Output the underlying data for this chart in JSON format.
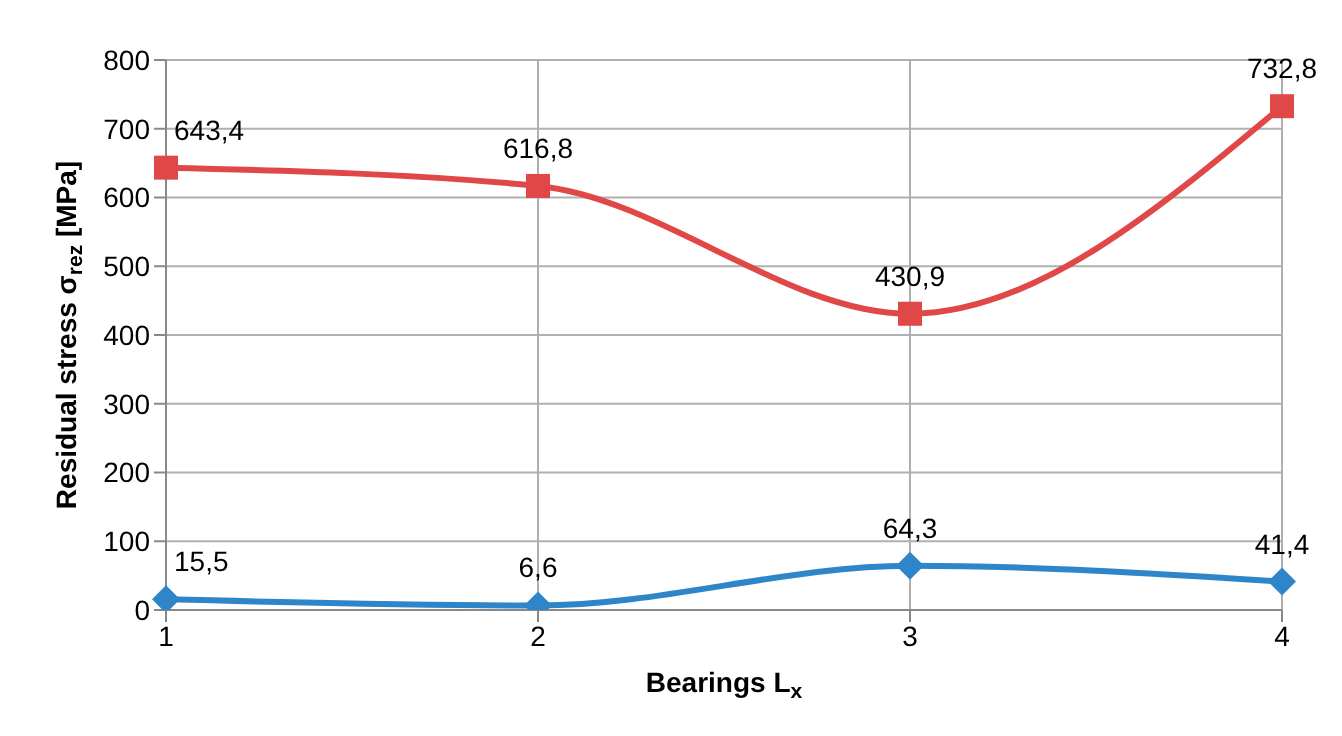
{
  "chart_data": {
    "type": "line",
    "xlabel": "Bearings L$_{x}$",
    "ylabel": "Residual stress σ$_{rez}$ [MPa]",
    "categories": [
      "1",
      "2",
      "3",
      "4"
    ],
    "series": [
      {
        "color": "#e04848",
        "marker": "square",
        "values": [
          643.4,
          616.8,
          430.9,
          732.8
        ],
        "value_labels": [
          "643,4",
          "616,8",
          "430,9",
          "732,8"
        ]
      },
      {
        "color": "#2e86c8",
        "marker": "diamond",
        "values": [
          15.5,
          6.6,
          64.3,
          41.4
        ],
        "value_labels": [
          "15,5",
          "6,6",
          "64,3",
          "41,4"
        ]
      }
    ],
    "ylim": [
      0,
      800
    ],
    "yticks": [
      0,
      100,
      200,
      300,
      400,
      500,
      600,
      700,
      800
    ],
    "grid": true
  }
}
